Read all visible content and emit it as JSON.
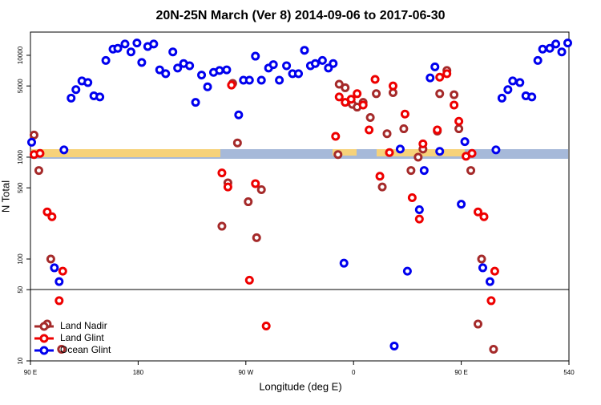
{
  "chart_data": {
    "type": "scatter",
    "title": "20N-25N March (Ver 8)   2014-09-06 to 2017-06-30",
    "x_label": "Longitude (deg E)",
    "y_label": "N Total",
    "log_y": true,
    "legend": "bottom-left",
    "xlim": [
      90,
      540
    ],
    "ylim": [
      10,
      16900
    ],
    "xticks": [
      {
        "value": 90,
        "label": "90 E"
      },
      180,
      {
        "value": 270,
        "label": "90 W"
      },
      {
        "value": 360,
        "label": "0"
      },
      {
        "value": 450,
        "label": "90 E"
      },
      540
    ],
    "yticks": [
      10,
      50,
      100,
      500,
      1000,
      5000,
      10000
    ],
    "series": [
      {
        "name": "Land Nadir",
        "color": "#a52a2a",
        "x": [
          93,
          97,
          104,
          107,
          116,
          250,
          263,
          272,
          279,
          283,
          255,
          259,
          347,
          348,
          353,
          359,
          363,
          368,
          374,
          379,
          384,
          388,
          393,
          402,
          408,
          414,
          418,
          430,
          432,
          438,
          444,
          448,
          458,
          464,
          467,
          477
        ],
        "values": [
          1650,
          740,
          23,
          100,
          13,
          210,
          1380,
          365,
          162,
          480,
          560,
          5300,
          1060,
          5200,
          4800,
          3300,
          3100,
          3450,
          2450,
          4200,
          510,
          1700,
          4300,
          1900,
          740,
          1000,
          1200,
          1800,
          4200,
          7100,
          4100,
          1900,
          740,
          23,
          100,
          13
        ]
      },
      {
        "name": "Land Glint",
        "color": "#ee0000",
        "x": [
          93,
          98,
          104,
          108,
          114,
          117,
          250,
          255,
          258,
          273,
          278,
          287,
          345,
          348,
          353,
          358,
          363,
          368,
          373,
          378,
          382,
          390,
          393,
          403,
          409,
          415,
          418,
          430,
          432,
          438,
          444,
          448,
          454,
          459,
          464,
          469,
          475,
          478
        ],
        "values": [
          1060,
          1090,
          290,
          260,
          39,
          76,
          700,
          510,
          5100,
          62,
          550,
          22,
          1600,
          3900,
          3450,
          3700,
          4200,
          3250,
          1850,
          5800,
          650,
          1110,
          5000,
          2650,
          400,
          247,
          1350,
          1850,
          6100,
          6600,
          3250,
          2250,
          1020,
          1090,
          290,
          260,
          39,
          76
        ]
      },
      {
        "name": "Ocean Glint",
        "color": "#0000ee",
        "x": [
          91,
          118,
          110,
          114,
          124,
          128,
          133,
          138,
          143,
          148,
          153,
          159,
          163,
          169,
          174,
          179,
          183,
          188,
          193,
          198,
          203,
          209,
          213,
          218,
          223,
          228,
          233,
          238,
          243,
          248,
          254,
          264,
          268,
          273,
          278,
          283,
          289,
          293,
          298,
          304,
          309,
          314,
          319,
          324,
          328,
          334,
          339,
          343,
          352,
          394,
          399,
          405,
          415,
          419,
          424,
          428,
          432,
          450,
          453,
          468,
          474,
          479,
          484,
          489,
          493,
          499,
          504,
          509,
          514,
          518,
          524,
          529,
          534,
          539
        ],
        "values": [
          1400,
          1180,
          82,
          60,
          3800,
          4600,
          5600,
          5400,
          4000,
          3900,
          8900,
          11500,
          11700,
          12900,
          10800,
          13200,
          8500,
          12200,
          12900,
          7200,
          6600,
          10800,
          7500,
          8300,
          7900,
          3450,
          6400,
          4900,
          6800,
          7100,
          7200,
          2600,
          5700,
          5700,
          9800,
          5700,
          7500,
          8100,
          5700,
          7900,
          6600,
          6600,
          11200,
          7900,
          8300,
          8900,
          7500,
          8300,
          91,
          14,
          1200,
          76,
          305,
          740,
          6000,
          7700,
          1140,
          345,
          1420,
          82,
          60,
          1180,
          3800,
          4600,
          5600,
          5400,
          4000,
          3900,
          8900,
          11500,
          11700,
          12900,
          10800,
          13200
        ]
      }
    ]
  }
}
